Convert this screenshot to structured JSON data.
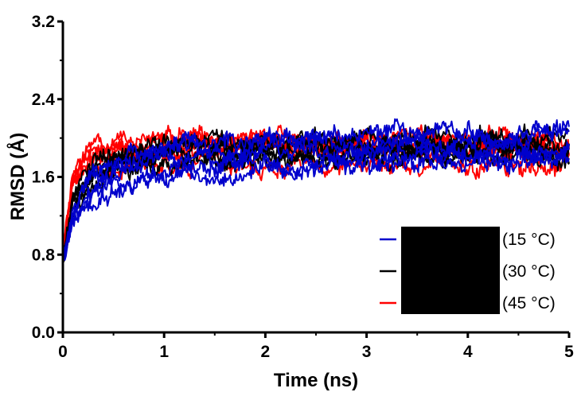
{
  "chart_data": {
    "type": "line",
    "xlabel": "Time (ns)",
    "ylabel": "RMSD (Å)",
    "xlim": [
      0,
      5
    ],
    "ylim": [
      0.0,
      3.2
    ],
    "x_ticks": [
      "0",
      "1",
      "2",
      "3",
      "4",
      "5"
    ],
    "y_ticks": [
      "0.0",
      "0.8",
      "1.6",
      "2.4",
      "3.2"
    ],
    "grid": false,
    "legend_placement": "bottom-right",
    "legend_name_redacted": true,
    "series": [
      {
        "name": "(15 °C)",
        "color": "#0000cc",
        "x": [
          0,
          0.1,
          0.25,
          0.5,
          0.75,
          1.0,
          1.5,
          2.0,
          2.5,
          3.0,
          3.5,
          4.0,
          4.5,
          5.0
        ],
        "y": [
          0.75,
          1.2,
          1.45,
          1.6,
          1.7,
          1.75,
          1.8,
          1.85,
          1.85,
          1.85,
          1.9,
          1.9,
          1.9,
          1.95
        ]
      },
      {
        "name": "(30 °C)",
        "color": "#000000",
        "x": [
          0,
          0.1,
          0.25,
          0.5,
          0.75,
          1.0,
          1.5,
          2.0,
          2.5,
          3.0,
          3.5,
          4.0,
          4.5,
          5.0
        ],
        "y": [
          0.75,
          1.3,
          1.55,
          1.7,
          1.75,
          1.8,
          1.85,
          1.8,
          1.8,
          1.85,
          1.85,
          1.85,
          1.85,
          1.85
        ]
      },
      {
        "name": "(45 °C)",
        "color": "#ff0000",
        "x": [
          0,
          0.1,
          0.25,
          0.5,
          0.75,
          1.0,
          1.5,
          2.0,
          2.5,
          3.0,
          3.5,
          4.0,
          4.5,
          5.0
        ],
        "y": [
          0.8,
          1.6,
          1.85,
          1.85,
          1.85,
          1.9,
          1.9,
          1.9,
          1.9,
          1.9,
          1.9,
          1.9,
          1.9,
          1.9
        ]
      }
    ]
  }
}
